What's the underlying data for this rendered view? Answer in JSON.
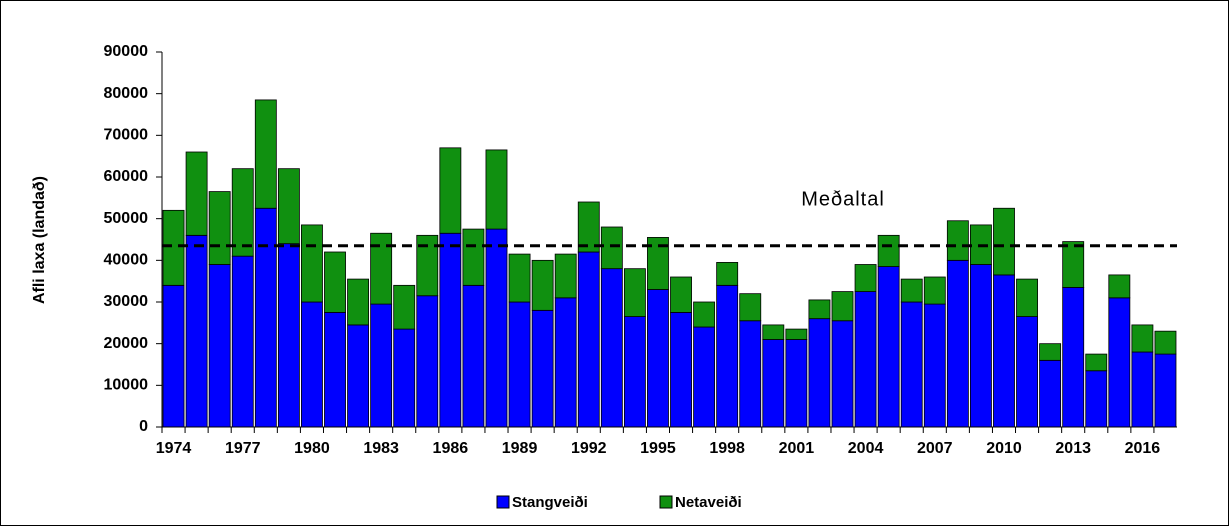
{
  "chart_data": {
    "type": "stacked_bar",
    "y_label": "Afli laxa (landað)",
    "categories": [
      "1974",
      null,
      null,
      "1977",
      null,
      null,
      "1980",
      null,
      null,
      "1983",
      null,
      null,
      "1986",
      null,
      null,
      "1989",
      null,
      null,
      "1992",
      null,
      null,
      "1995",
      null,
      null,
      "1998",
      null,
      null,
      "2001",
      null,
      null,
      "2004",
      null,
      null,
      "2007",
      null,
      null,
      "2010",
      null,
      null,
      "2013",
      null,
      null,
      "2016",
      null
    ],
    "series": [
      {
        "name": "Stangveiði",
        "color": "#0000ff",
        "values": [
          34000,
          46000,
          39000,
          41000,
          52500,
          44000,
          30000,
          27500,
          24500,
          29500,
          23500,
          31500,
          46500,
          34000,
          47500,
          30000,
          28000,
          31000,
          42000,
          38000,
          26500,
          33000,
          27500,
          24000,
          34000,
          25500,
          21000,
          21000,
          26000,
          25500,
          32500,
          38500,
          30000,
          29500,
          40000,
          39000,
          36500,
          26500,
          16000,
          33500,
          13500,
          31000,
          18000,
          17500
        ]
      },
      {
        "name": "Netaveiði",
        "color": "#109010",
        "values": [
          18000,
          20000,
          17500,
          21000,
          26000,
          18000,
          18500,
          14500,
          11000,
          17000,
          10500,
          14500,
          20500,
          13500,
          19000,
          11500,
          12000,
          10500,
          12000,
          10000,
          11500,
          12500,
          8500,
          6000,
          5500,
          6500,
          3500,
          2500,
          4500,
          7000,
          6500,
          7500,
          5500,
          6500,
          9500,
          9500,
          16000,
          9000,
          4000,
          11000,
          4000,
          5500,
          6500,
          5500
        ]
      }
    ],
    "mean_line": {
      "label": "Meðaltal",
      "value": 43500
    },
    "ylim": [
      0,
      90000
    ],
    "yticks": [
      0,
      10000,
      20000,
      30000,
      40000,
      50000,
      60000,
      70000,
      80000,
      90000
    ],
    "legend": "bottom"
  }
}
